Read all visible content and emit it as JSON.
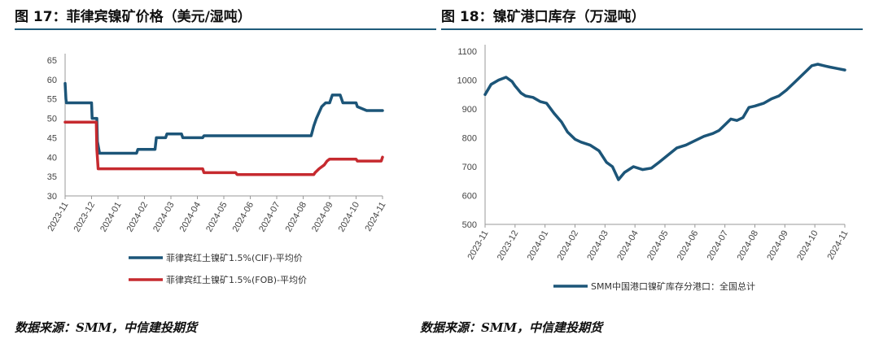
{
  "charts": [
    {
      "title": "图 17：菲律宾镍矿价格（美元/湿吨）",
      "source": "数据来源：SMM，中信建投期货"
    },
    {
      "title": "图 18：镍矿港口库存（万湿吨）",
      "source": "数据来源：SMM，中信建投期货"
    }
  ],
  "chart_data": [
    {
      "type": "line",
      "title": "图 17：菲律宾镍矿价格（美元/湿吨）",
      "xlabel": "",
      "ylabel": "",
      "ylim": [
        30,
        65
      ],
      "yticks": [
        30,
        35,
        40,
        45,
        50,
        55,
        60,
        65
      ],
      "x_ticks": [
        "2023-11",
        "2023-12",
        "2024-01",
        "2024-02",
        "2024-03",
        "2024-04",
        "2024-05",
        "2024-06",
        "2024-07",
        "2024-08",
        "2024-09",
        "2024-10",
        "2024-11"
      ],
      "xlim": [
        0,
        12
      ],
      "legend_position": "bottom",
      "grid": false,
      "series": [
        {
          "name": "菲律宾红土镍矿1.5%(CIF)-平均价",
          "color": "#1c5578",
          "x": [
            0,
            0.03,
            0.05,
            1.0,
            1.02,
            1.2,
            1.22,
            1.3,
            2.7,
            2.75,
            3.4,
            3.45,
            3.8,
            3.85,
            4.4,
            4.45,
            5.2,
            5.25,
            5.95,
            6.0,
            9.3,
            9.4,
            9.5,
            9.7,
            9.85,
            10.0,
            10.1,
            10.4,
            10.5,
            11.0,
            11.05,
            11.4,
            11.5,
            12.0
          ],
          "values": [
            59,
            55,
            54,
            54,
            50,
            50,
            44,
            41,
            41,
            42,
            42,
            45,
            45,
            46,
            46,
            45,
            45,
            45.5,
            45.5,
            45.5,
            45.5,
            48,
            50,
            53,
            54,
            54,
            56,
            56,
            54,
            54,
            53,
            52,
            52,
            52
          ]
        },
        {
          "name": "菲律宾红土镍矿1.5%(FOB)-平均价",
          "color": "#c62a2f",
          "x": [
            0,
            1.0,
            1.05,
            1.18,
            1.2,
            1.25,
            5.2,
            5.25,
            6.45,
            6.5,
            9.4,
            9.45,
            9.6,
            9.8,
            9.9,
            10.0,
            11.0,
            11.05,
            11.95,
            12.0
          ],
          "values": [
            49,
            49,
            49,
            49,
            42,
            37,
            37,
            36,
            36,
            35.5,
            35.5,
            36,
            37,
            38,
            39,
            39.5,
            39.5,
            39,
            39,
            40
          ]
        }
      ]
    },
    {
      "type": "line",
      "title": "图 18：镍矿港口库存（万湿吨）",
      "xlabel": "",
      "ylabel": "",
      "ylim": [
        500,
        1100
      ],
      "yticks": [
        500,
        600,
        700,
        800,
        900,
        1000,
        1100
      ],
      "x_ticks": [
        "2023-11",
        "2023-12",
        "2024-01",
        "2024-02",
        "2024-03",
        "2024-04",
        "2024-05",
        "2024-06",
        "2024-07",
        "2024-08",
        "2024-09",
        "2024-10",
        "2024-11"
      ],
      "xlim": [
        0,
        12
      ],
      "legend_position": "bottom",
      "grid": false,
      "series": [
        {
          "name": "SMM中国港口镍矿库存分港口：全国总计",
          "color": "#1c5578",
          "x": [
            0,
            0.2,
            0.45,
            0.7,
            0.9,
            1.0,
            1.2,
            1.35,
            1.6,
            1.85,
            2.05,
            2.3,
            2.55,
            2.75,
            3.0,
            3.2,
            3.5,
            3.8,
            4.05,
            4.25,
            4.45,
            4.65,
            4.95,
            5.25,
            5.55,
            5.8,
            6.1,
            6.4,
            6.7,
            7.0,
            7.3,
            7.6,
            7.8,
            8.0,
            8.2,
            8.4,
            8.6,
            8.8,
            9.0,
            9.3,
            9.55,
            9.8,
            10.05,
            10.3,
            10.5,
            10.75,
            10.9,
            11.1,
            11.3,
            11.5,
            11.75,
            12.0
          ],
          "values": [
            950,
            985,
            1000,
            1010,
            995,
            980,
            955,
            945,
            940,
            925,
            920,
            885,
            855,
            820,
            795,
            785,
            775,
            755,
            715,
            700,
            655,
            680,
            700,
            690,
            695,
            715,
            740,
            765,
            775,
            790,
            805,
            815,
            825,
            845,
            865,
            860,
            870,
            905,
            910,
            920,
            935,
            945,
            965,
            990,
            1010,
            1035,
            1050,
            1055,
            1050,
            1045,
            1040,
            1035
          ]
        }
      ]
    }
  ]
}
